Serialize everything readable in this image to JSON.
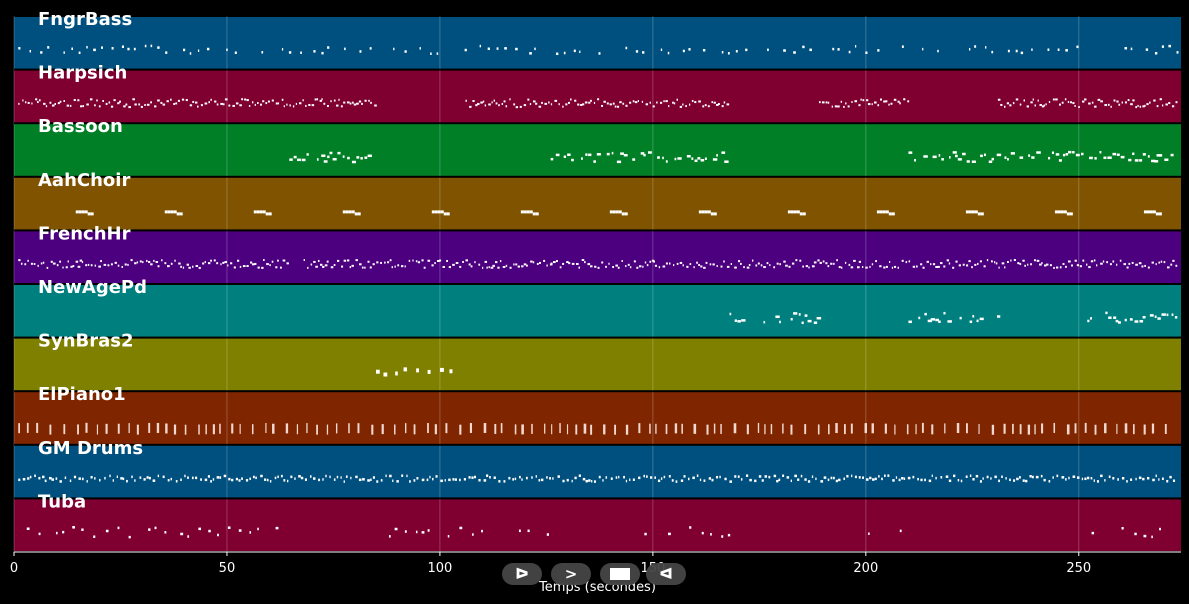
{
  "chart_data": {
    "type": "piano-roll",
    "xlabel": "Temps (secondes)",
    "xlim": [
      0,
      274
    ],
    "xticks": [
      0,
      50,
      100,
      150,
      200,
      250
    ],
    "grid": true,
    "tracks": [
      {
        "name": "FngrBass",
        "color": "#00507f",
        "density": "dense-sparse",
        "segments": [
          [
            1,
            273
          ]
        ]
      },
      {
        "name": "Harpsich",
        "color": "#7f0030",
        "density": "dense",
        "segments": [
          [
            1,
            85
          ],
          [
            106,
            168
          ],
          [
            189,
            210
          ],
          [
            231,
            273
          ]
        ]
      },
      {
        "name": "Bassoon",
        "color": "#007f26",
        "density": "phrases",
        "segments": [
          [
            64,
            84
          ],
          [
            126,
            168
          ],
          [
            210,
            272
          ]
        ]
      },
      {
        "name": "AahChoir",
        "color": "#7f5300",
        "density": "periodic",
        "segments": [
          [
            14,
            273
          ]
        ]
      },
      {
        "name": "FrenchHr",
        "color": "#4c007f",
        "density": "dense",
        "segments": [
          [
            1,
            64
          ],
          [
            68,
            90
          ],
          [
            90,
            126
          ],
          [
            126,
            150
          ],
          [
            150,
            273
          ]
        ]
      },
      {
        "name": "NewAgePd",
        "color": "#007f7f",
        "density": "phrases",
        "segments": [
          [
            168,
            189
          ],
          [
            210,
            231
          ],
          [
            252,
            273
          ]
        ]
      },
      {
        "name": "SynBras2",
        "color": "#7f7f00",
        "density": "few",
        "segments": [
          [
            85,
            104
          ]
        ]
      },
      {
        "name": "ElPiano1",
        "color": "#7f2600",
        "density": "chords",
        "segments": [
          [
            1,
            272
          ]
        ]
      },
      {
        "name": "GM Drums",
        "color": "#00507f",
        "density": "very-dense",
        "segments": [
          [
            1,
            273
          ]
        ]
      },
      {
        "name": "Tuba",
        "color": "#7f0030",
        "density": "sparse",
        "segments": [
          [
            3,
            62
          ],
          [
            86,
            126
          ],
          [
            148,
            168
          ],
          [
            191,
            210
          ],
          [
            253,
            273
          ]
        ]
      }
    ]
  },
  "controls": {
    "rewind_label": "ᐅ",
    "play_label": ">",
    "stop_label": "",
    "forward_label": "ᐊ"
  }
}
